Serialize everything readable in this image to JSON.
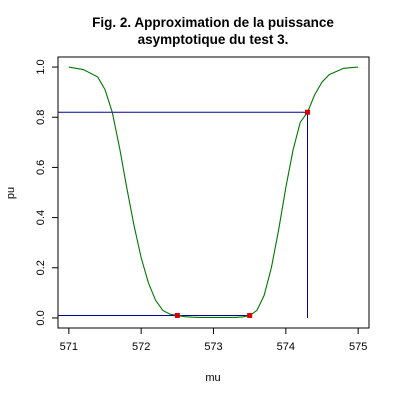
{
  "chart_data": {
    "type": "line",
    "title": [
      "Fig. 2. Approximation de la puissance",
      "asymptotique du test 3."
    ],
    "xlabel": "mu",
    "ylabel": "pu",
    "xlim": [
      570.85,
      575.15
    ],
    "ylim": [
      -0.04,
      1.04
    ],
    "x_ticks": [
      571,
      572,
      573,
      574,
      575
    ],
    "y_ticks": [
      0.0,
      0.2,
      0.4,
      0.6,
      0.8,
      1.0
    ],
    "x_tick_labels": [
      "571",
      "572",
      "573",
      "574",
      "575"
    ],
    "y_tick_labels": [
      "0.0",
      "0.2",
      "0.4",
      "0.6",
      "0.8",
      "1.0"
    ],
    "grid": false,
    "series": [
      {
        "color": "#007700",
        "x": [
          571.0,
          571.2,
          571.4,
          571.5,
          571.6,
          571.7,
          571.8,
          571.9,
          572.0,
          572.1,
          572.2,
          572.3,
          572.4,
          572.5,
          572.6,
          572.7,
          572.8,
          572.9,
          573.0,
          573.1,
          573.2,
          573.3,
          573.4,
          573.5,
          573.6,
          573.7,
          573.8,
          573.9,
          574.0,
          574.1,
          574.2,
          574.3,
          574.4,
          574.5,
          574.6,
          574.8,
          575.0
        ],
        "y": [
          1.0,
          0.99,
          0.96,
          0.91,
          0.82,
          0.68,
          0.52,
          0.37,
          0.24,
          0.14,
          0.07,
          0.03,
          0.015,
          0.01,
          0.005,
          0.003,
          0.002,
          0.002,
          0.002,
          0.002,
          0.002,
          0.002,
          0.004,
          0.01,
          0.03,
          0.09,
          0.2,
          0.35,
          0.52,
          0.67,
          0.78,
          0.82,
          0.89,
          0.94,
          0.97,
          0.995,
          1.0
        ]
      }
    ],
    "highlight_points": {
      "color": "#dd0000",
      "x": [
        572.5,
        573.5,
        574.3
      ],
      "y": [
        0.01,
        0.01,
        0.82
      ]
    },
    "reference_lines": {
      "color": "#000099",
      "horizontal": [
        {
          "y": 0.82,
          "x_from": 570.85,
          "x_to": 574.3
        },
        {
          "y": 0.01,
          "x_from": 570.85,
          "x_to": 573.5
        }
      ],
      "vertical": [
        {
          "x": 574.3,
          "y_from": 0.0,
          "y_to": 0.82
        }
      ]
    },
    "colors": {
      "background": "#ffffff",
      "axes": "#000000"
    }
  }
}
